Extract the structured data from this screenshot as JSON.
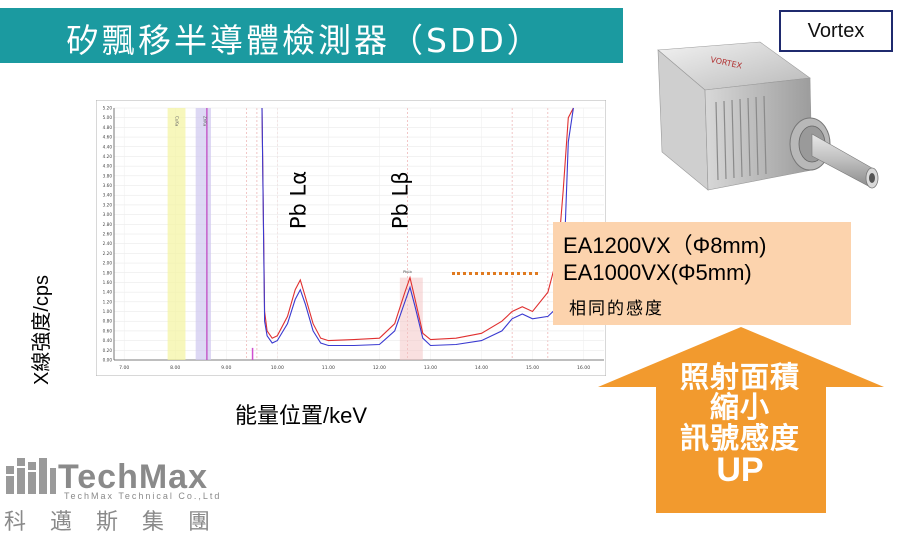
{
  "title": "矽飄移半導體檢測器（SDD）",
  "vortex_label": "Vortex",
  "product_image": {
    "brand_text": "VORTEX"
  },
  "colors": {
    "title_bar": "#1b9aa0",
    "info_box": "#fcd3ad",
    "arrow": "#f29a2e",
    "accent_dots": "#e07a1f"
  },
  "chart": {
    "ylabel": "X線強度/cps",
    "xlabel": "能量位置/keV",
    "peak_labels": [
      "Pb Lα",
      "Pb Lβ"
    ],
    "band_labels": [
      "CuKa",
      "ZnKa"
    ],
    "small_peak_label": "PbLb"
  },
  "chart_data": {
    "type": "line",
    "xlim": [
      6.8,
      16.4
    ],
    "ylim": [
      0,
      5.2
    ],
    "x_ticks": [
      "7.00",
      "8.00",
      "9.00",
      "10.00",
      "11.00",
      "12.00",
      "13.00",
      "14.00",
      "15.00",
      "16.00"
    ],
    "y_ticks": [
      "0.00",
      "0.20",
      "0.40",
      "0.60",
      "0.80",
      "1.00",
      "1.20",
      "1.40",
      "1.60",
      "1.80",
      "2.00",
      "2.20",
      "2.40",
      "2.60",
      "2.80",
      "3.00",
      "3.20",
      "3.40",
      "3.60",
      "3.80",
      "4.00",
      "4.20",
      "4.40",
      "4.60",
      "4.80",
      "5.00",
      "5.20"
    ],
    "grid": true,
    "series": [
      {
        "color": "#e03030",
        "x": [
          9.7,
          9.75,
          9.8,
          9.9,
          10.0,
          10.2,
          10.35,
          10.45,
          10.55,
          10.7,
          10.85,
          11.0,
          11.5,
          12.0,
          12.3,
          12.5,
          12.6,
          12.7,
          12.85,
          13.0,
          13.5,
          14.0,
          14.4,
          14.6,
          14.8,
          15.0,
          15.3,
          15.5,
          15.6,
          15.7,
          15.8
        ],
        "y": [
          5.2,
          1.0,
          0.6,
          0.45,
          0.5,
          0.9,
          1.45,
          1.65,
          1.3,
          0.75,
          0.45,
          0.4,
          0.42,
          0.45,
          0.75,
          1.4,
          1.7,
          1.25,
          0.55,
          0.42,
          0.45,
          0.55,
          0.8,
          1.0,
          1.1,
          1.0,
          1.4,
          2.2,
          3.5,
          5.0,
          5.2
        ]
      },
      {
        "color": "#3a3ad0",
        "x": [
          9.7,
          9.75,
          9.8,
          9.9,
          10.0,
          10.2,
          10.35,
          10.45,
          10.55,
          10.7,
          10.85,
          11.0,
          11.5,
          12.0,
          12.3,
          12.5,
          12.6,
          12.7,
          12.85,
          13.0,
          13.5,
          14.0,
          14.4,
          14.6,
          14.8,
          15.0,
          15.3,
          15.5,
          15.6,
          15.7,
          15.8
        ],
        "y": [
          5.2,
          0.8,
          0.5,
          0.35,
          0.4,
          0.75,
          1.25,
          1.45,
          1.15,
          0.6,
          0.35,
          0.3,
          0.3,
          0.32,
          0.6,
          1.2,
          1.5,
          1.1,
          0.45,
          0.3,
          0.32,
          0.4,
          0.6,
          0.85,
          0.95,
          0.85,
          0.9,
          1.1,
          1.6,
          4.5,
          5.2
        ]
      }
    ]
  },
  "info_box": {
    "line1": "EA1200VX（Φ8mm)",
    "line2": "EA1000VX(Φ5mm)",
    "line3": "相同的感度"
  },
  "arrow": {
    "lines": [
      "照射面積",
      "縮小",
      "訊號感度",
      "UP"
    ]
  },
  "logo": {
    "name": "TechMax",
    "subtitle": "TechMax Technical Co.,Ltd",
    "chinese": "科邁斯集團"
  }
}
